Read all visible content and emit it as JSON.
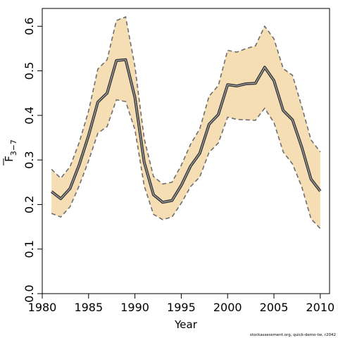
{
  "chart_data": {
    "type": "area",
    "xlabel": "Year",
    "ylabel_main": "F",
    "ylabel_sub": "3−7",
    "footnote": "stockassessment.org, quick-demo-tw, r2042",
    "xlim": [
      1980,
      2011
    ],
    "ylim": [
      0,
      0.64
    ],
    "x_ticks": [
      1980,
      1985,
      1990,
      1995,
      2000,
      2005,
      2010
    ],
    "x_tick_labels": [
      "1980",
      "1985",
      "1990",
      "1995",
      "2000",
      "2005",
      "2010"
    ],
    "y_ticks": [
      0.0,
      0.1,
      0.2,
      0.3,
      0.4,
      0.5,
      0.6
    ],
    "y_tick_labels": [
      "0.0",
      "0.1",
      "0.2",
      "0.3",
      "0.4",
      "0.5",
      "0.6"
    ],
    "grid": false,
    "colors": {
      "band_fill": "#f5deb3",
      "band_edge": "#6e6e6e",
      "estimate_outer": "#3a3a3a",
      "estimate_inner": "#bdbdbd",
      "frame": "#000000"
    },
    "x": [
      1981,
      1982,
      1983,
      1984,
      1985,
      1986,
      1987,
      1988,
      1989,
      1990,
      1991,
      1992,
      1993,
      1994,
      1995,
      1996,
      1997,
      1998,
      1999,
      2000,
      2001,
      2002,
      2003,
      2004,
      2005,
      2006,
      2007,
      2008,
      2009,
      2010
    ],
    "series": [
      {
        "role": "estimate",
        "values": [
          0.229,
          0.213,
          0.236,
          0.29,
          0.355,
          0.43,
          0.45,
          0.523,
          0.525,
          0.44,
          0.295,
          0.222,
          0.205,
          0.209,
          0.243,
          0.286,
          0.315,
          0.38,
          0.402,
          0.469,
          0.466,
          0.471,
          0.472,
          0.508,
          0.478,
          0.411,
          0.39,
          0.329,
          0.257,
          0.23
        ]
      },
      {
        "role": "upper",
        "values": [
          0.279,
          0.259,
          0.285,
          0.34,
          0.41,
          0.504,
          0.525,
          0.613,
          0.621,
          0.51,
          0.348,
          0.263,
          0.246,
          0.25,
          0.288,
          0.335,
          0.37,
          0.443,
          0.467,
          0.546,
          0.542,
          0.55,
          0.556,
          0.6,
          0.572,
          0.505,
          0.49,
          0.42,
          0.345,
          0.318
        ]
      },
      {
        "role": "lower",
        "values": [
          0.18,
          0.172,
          0.195,
          0.243,
          0.298,
          0.36,
          0.375,
          0.435,
          0.431,
          0.368,
          0.242,
          0.178,
          0.166,
          0.172,
          0.203,
          0.24,
          0.262,
          0.317,
          0.338,
          0.396,
          0.391,
          0.39,
          0.389,
          0.416,
          0.384,
          0.318,
          0.291,
          0.24,
          0.168,
          0.146
        ]
      }
    ]
  }
}
